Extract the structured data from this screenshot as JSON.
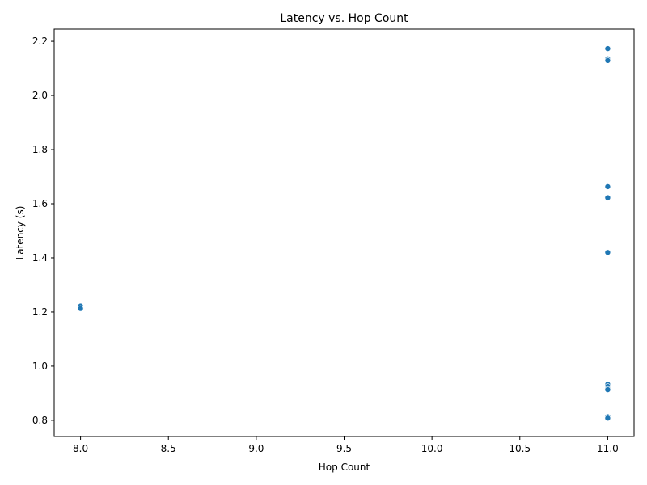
{
  "chart_data": {
    "type": "scatter",
    "title": "Latency vs. Hop Count",
    "xlabel": "Hop Count",
    "ylabel": "Latency (s)",
    "xlim": [
      7.85,
      11.15
    ],
    "ylim": [
      0.74,
      2.245
    ],
    "xticks": [
      "8.0",
      "8.5",
      "9.0",
      "9.5",
      "10.0",
      "10.5",
      "11.0"
    ],
    "yticks": [
      "0.8",
      "1.0",
      "1.2",
      "1.4",
      "1.6",
      "1.8",
      "2.0",
      "2.2"
    ],
    "grid": false,
    "point_color": "#1f77b4",
    "x": [
      8,
      8,
      11,
      11,
      11,
      11,
      11,
      11,
      11,
      11,
      11,
      11,
      11,
      11
    ],
    "y": [
      1.222,
      1.213,
      2.173,
      2.135,
      2.129,
      1.663,
      1.622,
      1.42,
      0.933,
      0.925,
      0.917,
      0.913,
      0.813,
      0.808
    ]
  }
}
